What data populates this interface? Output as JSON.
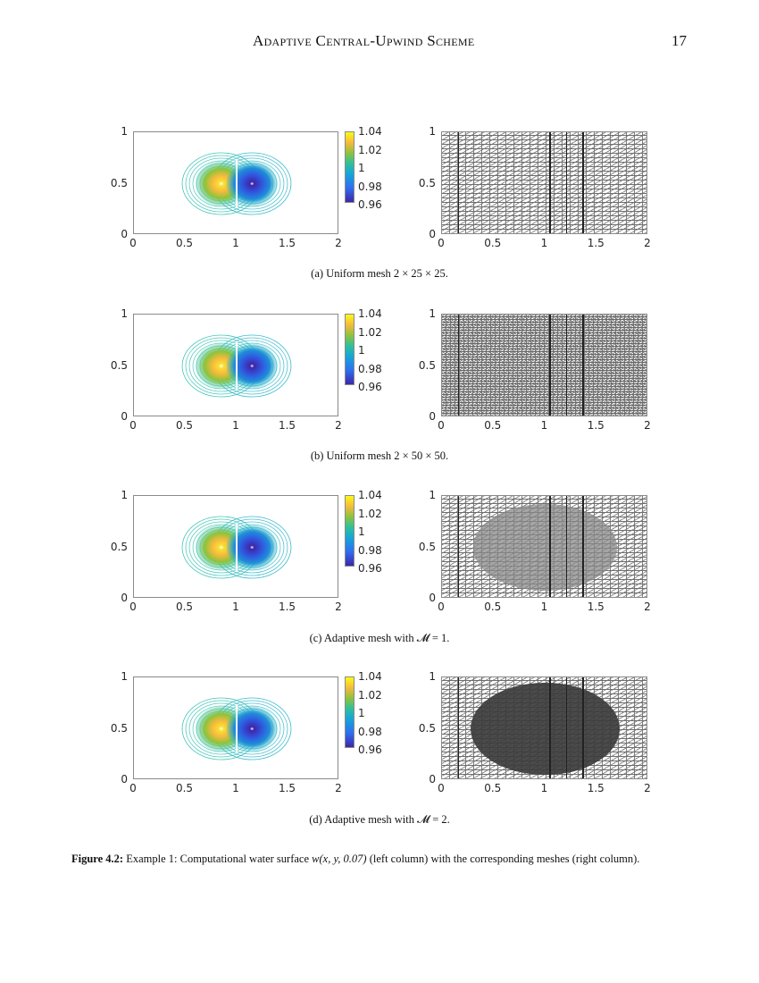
{
  "header": {
    "running_title": "Adaptive Central-Upwind Scheme",
    "page_number": "17"
  },
  "axes": {
    "x_ticks": [
      "0",
      "0.5",
      "1",
      "1.5",
      "2"
    ],
    "y_ticks": [
      "0",
      "0.5",
      "1"
    ],
    "colorbar_ticks": [
      "1.04",
      "1.02",
      "1",
      "0.98",
      "0.96"
    ]
  },
  "subfigures": [
    {
      "caption": "(a)  Uniform mesh 2 × 25 × 25.",
      "mesh_type": "uniform-coarse"
    },
    {
      "caption": "(b)  Uniform mesh 2 × 50 × 50.",
      "mesh_type": "uniform-fine"
    },
    {
      "caption": "(c)  Adaptive mesh with 𝓜 = 1.",
      "mesh_type": "adaptive-1"
    },
    {
      "caption": "(d)  Adaptive mesh with 𝓜 = 2.",
      "mesh_type": "adaptive-2"
    }
  ],
  "figure_caption": {
    "label": "Figure 4.2:",
    "text_before_math": " Example 1: Computational water surface ",
    "math": "w(x, y, 0.07)",
    "text_after_math": " (left column) with the corresponding meshes (right column)."
  },
  "chart_data": [
    {
      "type": "heatmap",
      "title": "(a) Uniform mesh 2 × 25 × 25 — water surface contours",
      "xlabel": "",
      "ylabel": "",
      "xlim": [
        0,
        2
      ],
      "ylim": [
        0,
        1
      ],
      "x_ticks": [
        0,
        0.5,
        1,
        1.5,
        2
      ],
      "y_ticks": [
        0,
        0.5,
        1
      ],
      "colorbar": {
        "range": [
          0.96,
          1.04
        ],
        "ticks": [
          0.96,
          0.98,
          1,
          1.02,
          1.04
        ],
        "colormap": "parula"
      },
      "features": [
        {
          "kind": "maximum",
          "x": 0.85,
          "y": 0.5,
          "value": 1.04
        },
        {
          "kind": "minimum",
          "x": 1.15,
          "y": 0.5,
          "value": 0.96
        }
      ],
      "contour_extent": {
        "x": [
          0.47,
          1.55
        ],
        "y": [
          0.22,
          0.82
        ]
      }
    },
    {
      "type": "diagram",
      "title": "(a) Uniform mesh 2 × 25 × 25",
      "xlim": [
        0,
        2
      ],
      "ylim": [
        0,
        1
      ],
      "x_ticks": [
        0,
        0.5,
        1,
        1.5,
        2
      ],
      "y_ticks": [
        0,
        0.5,
        1
      ],
      "mesh": "uniform triangular 2×25×25"
    },
    {
      "type": "heatmap",
      "title": "(b) Uniform mesh 2 × 50 × 50 — water surface contours",
      "xlim": [
        0,
        2
      ],
      "ylim": [
        0,
        1
      ],
      "x_ticks": [
        0,
        0.5,
        1,
        1.5,
        2
      ],
      "y_ticks": [
        0,
        0.5,
        1
      ],
      "colorbar": {
        "range": [
          0.96,
          1.04
        ],
        "ticks": [
          0.96,
          0.98,
          1,
          1.02,
          1.04
        ],
        "colormap": "parula"
      },
      "features": [
        {
          "kind": "maximum",
          "x": 0.85,
          "y": 0.5,
          "value": 1.04
        },
        {
          "kind": "minimum",
          "x": 1.15,
          "y": 0.5,
          "value": 0.96
        }
      ]
    },
    {
      "type": "diagram",
      "title": "(b) Uniform mesh 2 × 50 × 50",
      "xlim": [
        0,
        2
      ],
      "ylim": [
        0,
        1
      ],
      "x_ticks": [
        0,
        0.5,
        1,
        1.5,
        2
      ],
      "y_ticks": [
        0,
        0.5,
        1
      ],
      "mesh": "uniform triangular 2×50×50"
    },
    {
      "type": "heatmap",
      "title": "(c) Adaptive mesh with M = 1 — water surface contours",
      "xlim": [
        0,
        2
      ],
      "ylim": [
        0,
        1
      ],
      "x_ticks": [
        0,
        0.5,
        1,
        1.5,
        2
      ],
      "y_ticks": [
        0,
        0.5,
        1
      ],
      "colorbar": {
        "range": [
          0.96,
          1.04
        ],
        "ticks": [
          0.96,
          0.98,
          1,
          1.02,
          1.04
        ],
        "colormap": "parula"
      },
      "features": [
        {
          "kind": "maximum",
          "x": 0.85,
          "y": 0.5,
          "value": 1.04
        },
        {
          "kind": "minimum",
          "x": 1.15,
          "y": 0.5,
          "value": 0.96
        }
      ]
    },
    {
      "type": "diagram",
      "title": "(c) Adaptive mesh with M = 1",
      "xlim": [
        0,
        2
      ],
      "ylim": [
        0,
        1
      ],
      "x_ticks": [
        0,
        0.5,
        1,
        1.5,
        2
      ],
      "y_ticks": [
        0,
        0.5,
        1
      ],
      "mesh": "adaptive, refined ellipse x∈[0.3,1.7], y∈[0.08,0.92]"
    },
    {
      "type": "heatmap",
      "title": "(d) Adaptive mesh with M = 2 — water surface contours",
      "xlim": [
        0,
        2
      ],
      "ylim": [
        0,
        1
      ],
      "x_ticks": [
        0,
        0.5,
        1,
        1.5,
        2
      ],
      "y_ticks": [
        0,
        0.5,
        1
      ],
      "colorbar": {
        "range": [
          0.96,
          1.04
        ],
        "ticks": [
          0.96,
          0.98,
          1,
          1.02,
          1.04
        ],
        "colormap": "parula"
      },
      "features": [
        {
          "kind": "maximum",
          "x": 0.85,
          "y": 0.5,
          "value": 1.04
        },
        {
          "kind": "minimum",
          "x": 1.15,
          "y": 0.5,
          "value": 0.96
        }
      ]
    },
    {
      "type": "diagram",
      "title": "(d) Adaptive mesh with M = 2",
      "xlim": [
        0,
        2
      ],
      "ylim": [
        0,
        1
      ],
      "x_ticks": [
        0,
        0.5,
        1,
        1.5,
        2
      ],
      "y_ticks": [
        0,
        0.5,
        1
      ],
      "mesh": "adaptive, two refinement levels, dense region x∈[0.28,1.72], y∈[0.05,0.95]"
    }
  ]
}
